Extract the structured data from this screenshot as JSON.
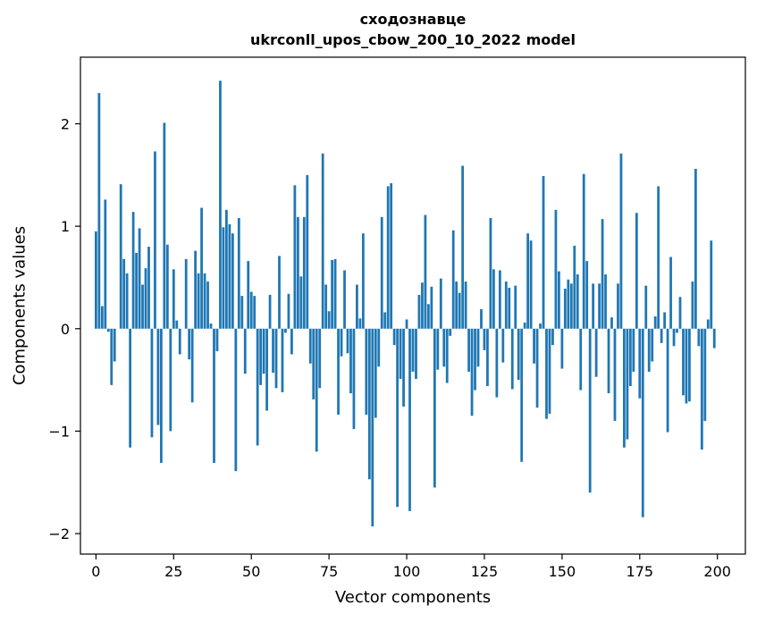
{
  "chart_data": {
    "type": "bar",
    "title_line1": "сходознавце",
    "title_line2": "ukrconll_upos_cbow_200_10_2022 model",
    "xlabel": "Vector components",
    "ylabel": "Components values",
    "xlim": [
      -5,
      209
    ],
    "ylim": [
      -2.2,
      2.65
    ],
    "xticks": [
      0,
      25,
      50,
      75,
      100,
      125,
      150,
      175,
      200
    ],
    "xtick_labels": [
      "0",
      "25",
      "50",
      "75",
      "100",
      "125",
      "150",
      "175",
      "200"
    ],
    "yticks": [
      -2,
      -1,
      0,
      1,
      2
    ],
    "ytick_labels": [
      "−2",
      "−1",
      "0",
      "1",
      "2"
    ],
    "bar_color": "#1f77b4",
    "x": [
      0,
      1,
      2,
      3,
      4,
      5,
      6,
      7,
      8,
      9,
      10,
      11,
      12,
      13,
      14,
      15,
      16,
      17,
      18,
      19,
      20,
      21,
      22,
      23,
      24,
      25,
      26,
      27,
      28,
      29,
      30,
      31,
      32,
      33,
      34,
      35,
      36,
      37,
      38,
      39,
      40,
      41,
      42,
      43,
      44,
      45,
      46,
      47,
      48,
      49,
      50,
      51,
      52,
      53,
      54,
      55,
      56,
      57,
      58,
      59,
      60,
      61,
      62,
      63,
      64,
      65,
      66,
      67,
      68,
      69,
      70,
      71,
      72,
      73,
      74,
      75,
      76,
      77,
      78,
      79,
      80,
      81,
      82,
      83,
      84,
      85,
      86,
      87,
      88,
      89,
      90,
      91,
      92,
      93,
      94,
      95,
      96,
      97,
      98,
      99,
      100,
      101,
      102,
      103,
      104,
      105,
      106,
      107,
      108,
      109,
      110,
      111,
      112,
      113,
      114,
      115,
      116,
      117,
      118,
      119,
      120,
      121,
      122,
      123,
      124,
      125,
      126,
      127,
      128,
      129,
      130,
      131,
      132,
      133,
      134,
      135,
      136,
      137,
      138,
      139,
      140,
      141,
      142,
      143,
      144,
      145,
      146,
      147,
      148,
      149,
      150,
      151,
      152,
      153,
      154,
      155,
      156,
      157,
      158,
      159,
      160,
      161,
      162,
      163,
      164,
      165,
      166,
      167,
      168,
      169,
      170,
      171,
      172,
      173,
      174,
      175,
      176,
      177,
      178,
      179,
      180,
      181,
      182,
      183,
      184,
      185,
      186,
      187,
      188,
      189,
      190,
      191,
      192,
      193,
      194,
      195,
      196,
      197,
      198,
      199
    ],
    "values": [
      0.95,
      2.3,
      0.22,
      1.26,
      -0.03,
      -0.55,
      -0.32,
      0,
      1.41,
      0.68,
      0.54,
      -1.16,
      1.14,
      0.74,
      0.98,
      0.43,
      0.59,
      0.8,
      -1.06,
      1.73,
      -0.94,
      -1.31,
      2.01,
      0.82,
      -1.0,
      0.58,
      0.08,
      -0.25,
      0,
      0.68,
      -0.3,
      -0.72,
      0.76,
      0.54,
      1.18,
      0.54,
      0.46,
      0.05,
      -1.31,
      -0.22,
      2.42,
      0.99,
      1.16,
      1.02,
      0.93,
      -1.39,
      1.08,
      0.32,
      -0.44,
      0.66,
      0.36,
      0.32,
      -1.14,
      -0.55,
      -0.44,
      -0.8,
      0.33,
      -0.43,
      -0.58,
      0.71,
      -0.62,
      -0.04,
      0.34,
      -0.25,
      1.4,
      1.09,
      0.51,
      1.09,
      1.5,
      -0.34,
      -0.69,
      -1.2,
      -0.58,
      1.71,
      0.43,
      0.17,
      0.67,
      0.68,
      -0.84,
      -0.27,
      0.57,
      -0.24,
      -0.63,
      -0.98,
      0.43,
      0.1,
      0.93,
      -0.84,
      -1.47,
      -1.93,
      -0.87,
      -0.37,
      1.09,
      0.16,
      1.39,
      1.42,
      -0.16,
      -1.74,
      -0.49,
      -0.76,
      0.09,
      -1.78,
      -0.42,
      -0.49,
      0.33,
      0.45,
      1.11,
      0.24,
      0.41,
      -1.55,
      -0.4,
      0.49,
      -0.37,
      -0.53,
      -0.07,
      0.96,
      0.46,
      0.35,
      1.59,
      0.46,
      -0.42,
      -0.85,
      -0.6,
      -0.37,
      0.19,
      -0.21,
      -0.56,
      1.08,
      0.58,
      -0.67,
      0.57,
      -0.33,
      0.46,
      0.4,
      -0.59,
      0.42,
      -0.5,
      -1.3,
      0.06,
      0.93,
      0.86,
      -0.34,
      -0.77,
      0.05,
      1.49,
      -0.88,
      -0.83,
      -0.16,
      1.16,
      0.56,
      -0.39,
      0.39,
      0.48,
      0.44,
      0.81,
      0.53,
      -0.6,
      1.51,
      0.66,
      -1.6,
      0.44,
      -0.47,
      0.44,
      1.07,
      0.53,
      -0.63,
      0.11,
      -0.9,
      0.44,
      1.71,
      -1.16,
      -1.08,
      -0.56,
      -0.42,
      1.13,
      -0.68,
      -1.84,
      0.42,
      -0.42,
      -0.32,
      0.12,
      1.39,
      -0.14,
      0.16,
      -1.01,
      0.7,
      -0.17,
      -0.04,
      0.31,
      -0.65,
      -0.73,
      -0.71,
      0.46,
      1.56,
      -0.17,
      -1.18,
      -0.9,
      0.09,
      0.86,
      -0.19
    ]
  }
}
